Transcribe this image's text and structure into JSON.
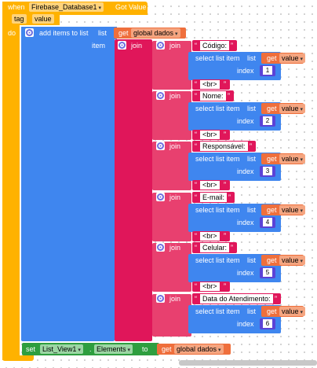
{
  "event": {
    "when": "when",
    "component": "Firebase_Database1",
    "event_name": "Got Value",
    "param_tag": "tag",
    "param_value": "value",
    "do": "do"
  },
  "add_items": {
    "label": "add items to list",
    "list_label": "list",
    "get_label": "get",
    "list_var": "global dados",
    "item_label": "item",
    "join": "join"
  },
  "rows": [
    {
      "join": "join",
      "text": "Código: ",
      "select": "select list item",
      "list": "list",
      "get": "get",
      "var": "value",
      "index_label": "index",
      "index": "1",
      "br": "<br>"
    },
    {
      "join": "join",
      "text": "Nome: ",
      "select": "select list item",
      "list": "list",
      "get": "get",
      "var": "value",
      "index_label": "index",
      "index": "2",
      "br": "<br>"
    },
    {
      "join": "join",
      "text": "Responsável: ",
      "select": "select list item",
      "list": "list",
      "get": "get",
      "var": "value",
      "index_label": "index",
      "index": "3",
      "br": "<br>"
    },
    {
      "join": "join",
      "text": "E-mail: ",
      "select": "select list item",
      "list": "list",
      "get": "get",
      "var": "value",
      "index_label": "index",
      "index": "4",
      "br": "<br>"
    },
    {
      "join": "join",
      "text": "Celular: ",
      "select": "select list item",
      "list": "list",
      "get": "get",
      "var": "value",
      "index_label": "index",
      "index": "5",
      "br": "<br>"
    },
    {
      "join": "join",
      "text": "Data do Atendimento: ",
      "select": "select list item",
      "list": "list",
      "get": "get",
      "var": "value",
      "index_label": "index",
      "index": "6",
      "br": ""
    }
  ],
  "set_block": {
    "set": "set",
    "component": "List_View1",
    "property": "Elements",
    "to": "to",
    "get": "get",
    "var": "global dados"
  },
  "colors": {
    "event": "#ffb200",
    "list": "#3f86ef",
    "text": "#e0165a",
    "variable": "#ef6f3c",
    "math": "#5b43d6",
    "component": "#2e9e3f"
  }
}
